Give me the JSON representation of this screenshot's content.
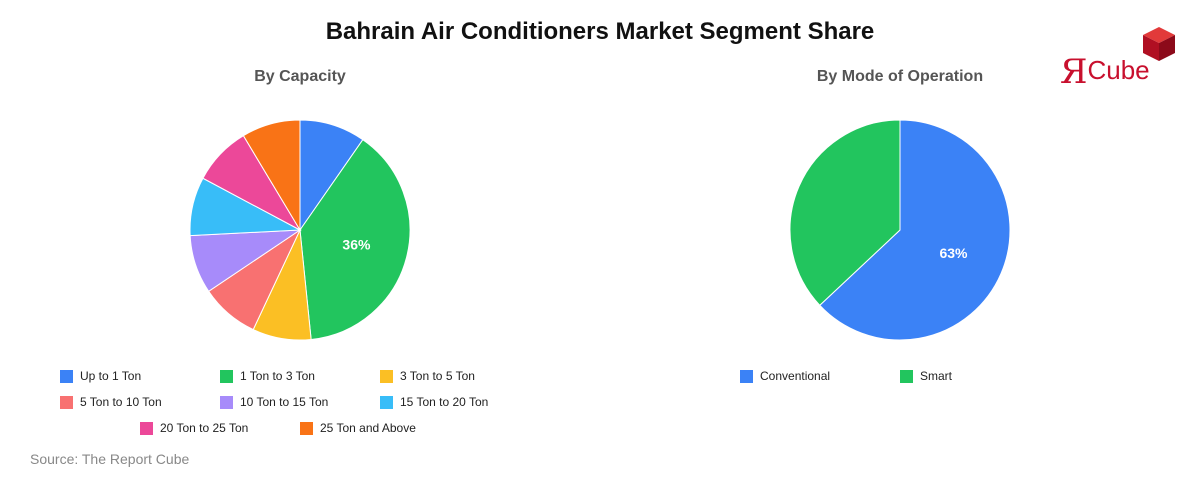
{
  "title": "Bahrain Air Conditioners Market Segment Share",
  "logo": {
    "text": "Cube",
    "mark": "Я",
    "cube_color": "#c8102e",
    "icon": "cube-icon"
  },
  "source": "Source: The Report Cube",
  "chart_data": [
    {
      "type": "pie",
      "title": "By Capacity",
      "series": [
        {
          "name": "Up to 1 Ton",
          "value": 9,
          "color": "#3b82f6"
        },
        {
          "name": "1 Ton to 3 Ton",
          "value": 36,
          "color": "#22c55e",
          "label": "36%"
        },
        {
          "name": "3 Ton to 5 Ton",
          "value": 8,
          "color": "#fbbf24"
        },
        {
          "name": "5 Ton to 10 Ton",
          "value": 8,
          "color": "#f87171"
        },
        {
          "name": "10 Ton to 15 Ton",
          "value": 8,
          "color": "#a78bfa"
        },
        {
          "name": "15 Ton to 20 Ton",
          "value": 8,
          "color": "#38bdf8"
        },
        {
          "name": "20 Ton to 25 Ton",
          "value": 8,
          "color": "#ec4899"
        },
        {
          "name": "25 Ton and Above",
          "value": 8,
          "color": "#f97316"
        }
      ],
      "legend_position": "bottom"
    },
    {
      "type": "pie",
      "title": "By Mode of Operation",
      "series": [
        {
          "name": "Conventional",
          "value": 63,
          "color": "#3b82f6",
          "label": "63%"
        },
        {
          "name": "Smart",
          "value": 37,
          "color": "#22c55e"
        }
      ],
      "legend_position": "bottom"
    }
  ]
}
